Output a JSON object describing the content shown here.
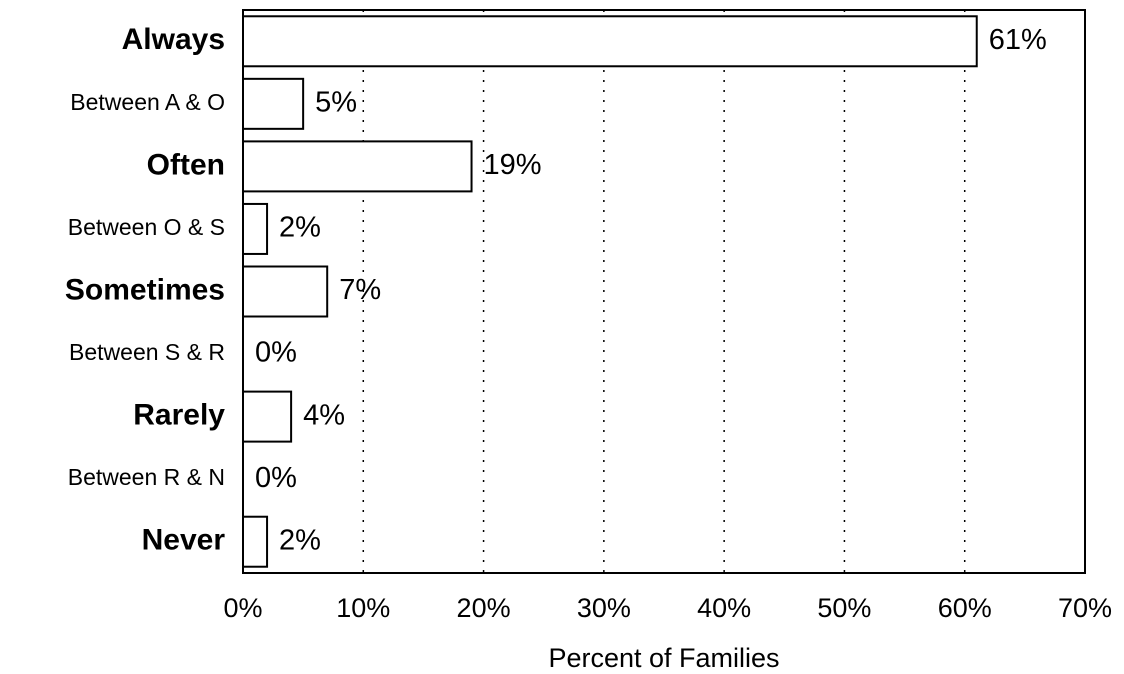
{
  "chart_data": {
    "type": "bar",
    "orientation": "horizontal",
    "x_label": "Percent of Families",
    "categories": [
      "Always",
      "Between A & O",
      "Often",
      "Between O & S",
      "Sometimes",
      "Between S & R",
      "Rarely",
      "Between R & N",
      "Never"
    ],
    "values": [
      61,
      5,
      19,
      2,
      7,
      0,
      4,
      0,
      2
    ],
    "value_labels": [
      "61%",
      "5%",
      "19%",
      "2%",
      "7%",
      "0%",
      "4%",
      "0%",
      "2%"
    ],
    "color": "#ffffff",
    "xlim": [
      0,
      70
    ],
    "xticks": [
      {
        "value": 0,
        "label": "0%"
      },
      {
        "value": 10,
        "label": "10%"
      },
      {
        "value": 20,
        "label": "20%"
      },
      {
        "value": 30,
        "label": "30%"
      },
      {
        "value": 40,
        "label": "40%"
      },
      {
        "value": 50,
        "label": "50%"
      },
      {
        "value": 60,
        "label": "60%"
      },
      {
        "value": 70,
        "label": "70%"
      }
    ],
    "grid": true
  }
}
